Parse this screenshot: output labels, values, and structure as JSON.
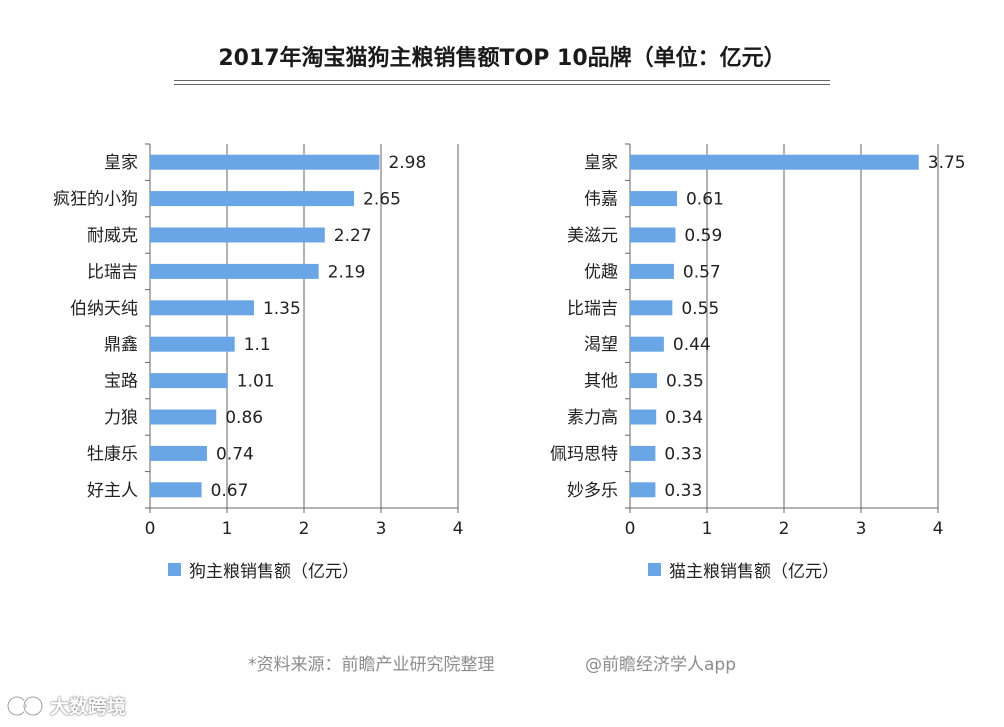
{
  "title": "2017年淘宝猫狗主粮销售额TOP 10品牌（单位：亿元）",
  "colors": {
    "bar": "#6aa5e6",
    "axis": "#666666",
    "text": "#222222",
    "footer": "#8c8c8c"
  },
  "chart_data": [
    {
      "type": "bar",
      "orientation": "horizontal",
      "categories": [
        "皇家",
        "疯狂的小狗",
        "耐威克",
        "比瑞吉",
        "伯纳天纯",
        "鼎鑫",
        "宝路",
        "力狼",
        "牡康乐",
        "好主人"
      ],
      "values": [
        2.98,
        2.65,
        2.27,
        2.19,
        1.35,
        1.1,
        1.01,
        0.86,
        0.74,
        0.67
      ],
      "value_labels": [
        "2.98",
        "2.65",
        "2.27",
        "2.19",
        "1.35",
        "1.1",
        "1.01",
        "0.86",
        "0.74",
        "0.67"
      ],
      "xlim": [
        0,
        4
      ],
      "xticks": [
        "0",
        "1",
        "2",
        "3",
        "4"
      ],
      "legend": "狗主粮销售额（亿元）",
      "legend_position": "bottom"
    },
    {
      "type": "bar",
      "orientation": "horizontal",
      "categories": [
        "皇家",
        "伟嘉",
        "美滋元",
        "优趣",
        "比瑞吉",
        "渴望",
        "其他",
        "素力高",
        "佩玛思特",
        "妙多乐"
      ],
      "values": [
        3.75,
        0.61,
        0.59,
        0.57,
        0.55,
        0.44,
        0.35,
        0.34,
        0.33,
        0.33
      ],
      "value_labels": [
        "3.75",
        "0.61",
        "0.59",
        "0.57",
        "0.55",
        "0.44",
        "0.35",
        "0.34",
        "0.33",
        "0.33"
      ],
      "xlim": [
        0,
        4
      ],
      "xticks": [
        "0",
        "1",
        "2",
        "3",
        "4"
      ],
      "legend": "猫主粮销售额（亿元）",
      "legend_position": "bottom"
    }
  ],
  "footer": {
    "source": "*资料来源：前瞻产业研究院整理",
    "handle": "@前瞻经济学人app"
  },
  "watermark": {
    "text": "大数跨境"
  }
}
